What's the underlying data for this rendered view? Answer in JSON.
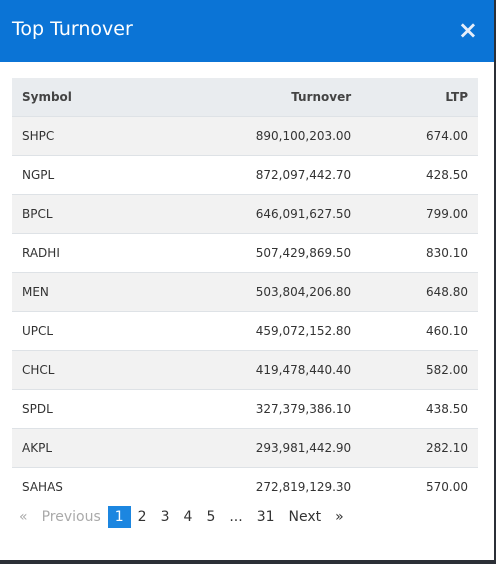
{
  "header": {
    "title": "Top Turnover",
    "close": "×"
  },
  "table": {
    "columns": [
      "Symbol",
      "Turnover",
      "LTP"
    ],
    "rows": [
      [
        "SHPC",
        "890,100,203.00",
        "674.00"
      ],
      [
        "NGPL",
        "872,097,442.70",
        "428.50"
      ],
      [
        "BPCL",
        "646,091,627.50",
        "799.00"
      ],
      [
        "RADHI",
        "507,429,869.50",
        "830.10"
      ],
      [
        "MEN",
        "503,804,206.80",
        "648.80"
      ],
      [
        "UPCL",
        "459,072,152.80",
        "460.10"
      ],
      [
        "CHCL",
        "419,478,440.40",
        "582.00"
      ],
      [
        "SPDL",
        "327,379,386.10",
        "438.50"
      ],
      [
        "AKPL",
        "293,981,442.90",
        "282.10"
      ],
      [
        "SAHAS",
        "272,819,129.30",
        "570.00"
      ]
    ]
  },
  "pagination": {
    "items": [
      "«",
      "Previous",
      "1",
      "2",
      "3",
      "4",
      "5",
      "...",
      "31",
      "Next",
      "»"
    ],
    "active": "1"
  }
}
